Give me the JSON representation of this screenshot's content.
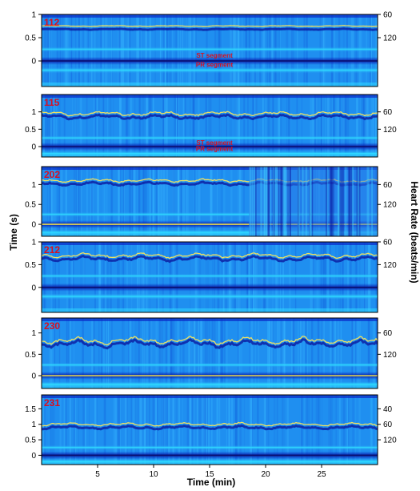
{
  "chart_data": {
    "type": "heatmap",
    "x_axis": {
      "label": "Time (min)",
      "range": [
        0,
        30
      ],
      "ticks": [
        "5",
        "10",
        "15",
        "20",
        "25"
      ],
      "tick_values": [
        5,
        10,
        15,
        20,
        25
      ]
    },
    "left_axis_label": "Time (s)",
    "right_axis_label": "Heart Rate (beats/min)",
    "colors": {
      "background": "#1f8ff0",
      "deep": "#0a28c8",
      "bright": "#2ad8f8",
      "hot": "#f0e060",
      "label": "#d8101f"
    },
    "panels": [
      {
        "record": "112",
        "ylim": [
          -0.55,
          1.0
        ],
        "left_ticks": [
          "1",
          "0.5",
          "0"
        ],
        "left_tick_values": [
          1,
          0.5,
          0
        ],
        "right_ticks": [
          "60",
          "120"
        ],
        "right_tick_values": [
          1.0,
          0.5
        ],
        "segment_labels": [
          {
            "text": "ST segment",
            "y": 0.12
          },
          {
            "text": "PR segment",
            "y": -0.08
          }
        ],
        "rr_trace": {
          "base": 0.75,
          "wobble": 0.01
        }
      },
      {
        "record": "115",
        "ylim": [
          -0.3,
          1.5
        ],
        "left_ticks": [
          "1",
          "0.5",
          "0"
        ],
        "left_tick_values": [
          1,
          0.5,
          0
        ],
        "right_ticks": [
          "60",
          "120"
        ],
        "right_tick_values": [
          1.0,
          0.5
        ],
        "segment_labels": [
          {
            "text": "ST segment",
            "y": 0.12
          },
          {
            "text": "PR segment",
            "y": -0.06
          }
        ],
        "rr_trace": {
          "base": 0.95,
          "wobble": 0.06
        }
      },
      {
        "record": "202",
        "ylim": [
          -0.3,
          1.45
        ],
        "left_ticks": [
          "1",
          "0.5",
          "0"
        ],
        "left_tick_values": [
          1,
          0.5,
          0
        ],
        "right_ticks": [
          "60",
          "120"
        ],
        "right_tick_values": [
          1.0,
          0.5
        ],
        "segment_labels": [],
        "rr_trace": {
          "base": 1.1,
          "wobble": 0.04
        }
      },
      {
        "record": "212",
        "ylim": [
          -0.55,
          1.0
        ],
        "left_ticks": [
          "1",
          "0.5",
          "0"
        ],
        "left_tick_values": [
          1,
          0.5,
          0
        ],
        "right_ticks": [
          "60",
          "120"
        ],
        "right_tick_values": [
          1.0,
          0.5
        ],
        "segment_labels": [],
        "rr_trace": {
          "base": 0.7,
          "wobble": 0.05
        }
      },
      {
        "record": "230",
        "ylim": [
          -0.3,
          1.35
        ],
        "left_ticks": [
          "1",
          "0.5",
          "0"
        ],
        "left_tick_values": [
          1,
          0.5,
          0
        ],
        "right_ticks": [
          "60",
          "120"
        ],
        "right_tick_values": [
          1.0,
          0.5
        ],
        "segment_labels": [],
        "rr_trace": {
          "base": 0.82,
          "wobble": 0.08
        }
      },
      {
        "record": "231",
        "ylim": [
          -0.3,
          1.95
        ],
        "left_ticks": [
          "1.5",
          "1",
          "0.5",
          "0"
        ],
        "left_tick_values": [
          1.5,
          1,
          0.5,
          0
        ],
        "right_ticks": [
          "40",
          "60",
          "120"
        ],
        "right_tick_values": [
          1.5,
          1.0,
          0.5
        ],
        "segment_labels": [],
        "rr_trace": {
          "base": 1.0,
          "wobble": 0.05
        }
      }
    ]
  }
}
